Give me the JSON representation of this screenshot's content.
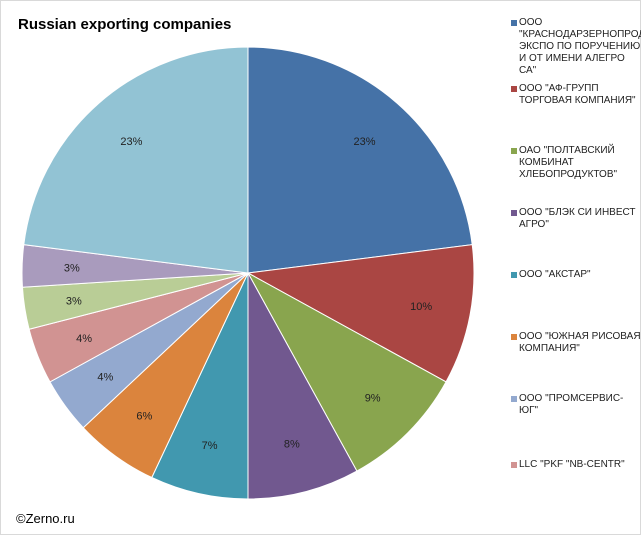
{
  "chart_data": {
    "type": "pie",
    "title": "Russian exporting companies",
    "start_angle_deg": 90,
    "direction": "clockwise",
    "slices": [
      {
        "label": "ООО \"КРАСНОДАРЗЕРНОПРОДУКТ-ЭКСПО ПО ПОРУЧЕНИЮ И ОТ ИМЕНИ АЛЕГРО СА\"",
        "value": 23,
        "display": "23%",
        "color": "#4572a7"
      },
      {
        "label": "ООО \"АФ-ГРУПП ТОРГОВАЯ КОМПАНИЯ\"",
        "value": 10,
        "display": "10%",
        "color": "#aa4643"
      },
      {
        "label": "ОАО \"ПОЛТАВСКИЙ КОМБИНАТ ХЛЕБОПРОДУКТОВ\"",
        "value": 9,
        "display": "9%",
        "color": "#89a54e"
      },
      {
        "label": "ООО \"БЛЭК СИ ИНВЕСТ АГРО\"",
        "value": 8,
        "display": "8%",
        "color": "#71588f"
      },
      {
        "label": "ООО \"АКСТАР\"",
        "value": 7,
        "display": "7%",
        "color": "#4198af"
      },
      {
        "label": "ООО \"ЮЖНАЯ РИСОВАЯ КОМПАНИЯ\"",
        "value": 6,
        "display": "6%",
        "color": "#db843d"
      },
      {
        "label": "ООО \"ПРОМСЕРВИС-ЮГ\"",
        "value": 4,
        "display": "4%",
        "color": "#93a9cf"
      },
      {
        "label": "LLC \"PKF \"NB-CENTR\"",
        "value": 4,
        "display": "4%",
        "color": "#d19392"
      },
      {
        "label": "",
        "value": 3,
        "display": "3%",
        "color": "#b9cd96"
      },
      {
        "label": "",
        "value": 3,
        "display": "3%",
        "color": "#a99bbd"
      },
      {
        "label": "",
        "value": 23,
        "display": "23%",
        "color": "#92c3d4"
      }
    ]
  },
  "copyright": "©Zerno.ru"
}
